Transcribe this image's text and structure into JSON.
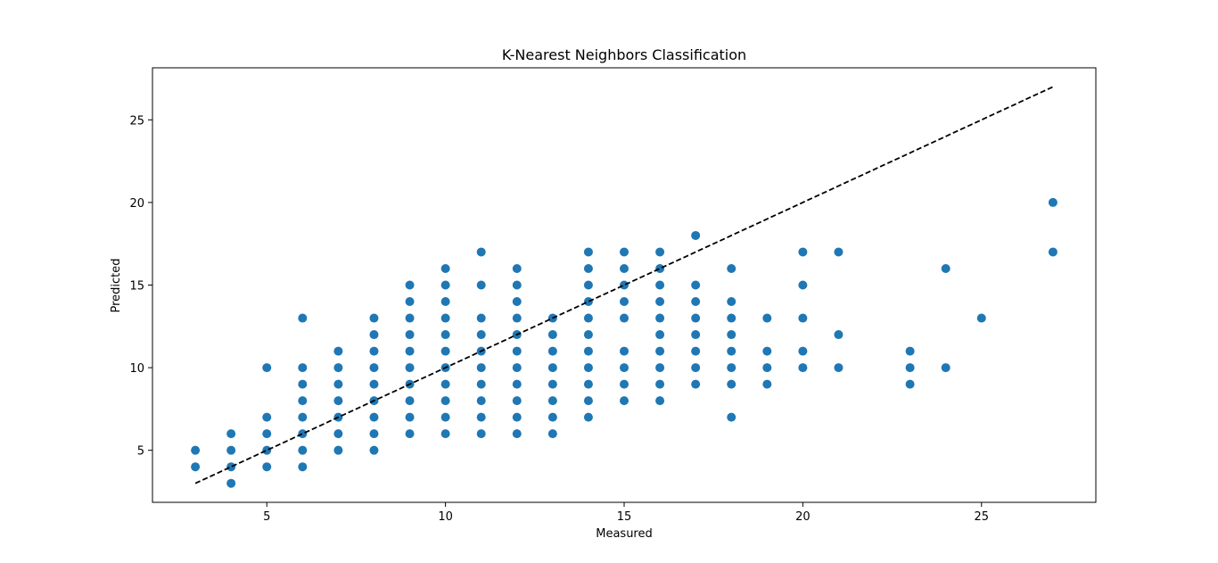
{
  "chart_data": {
    "type": "scatter",
    "title": "K-Nearest Neighbors Classification",
    "xlabel": "Measured",
    "ylabel": "Predicted",
    "xlim": [
      1.8,
      28.2
    ],
    "ylim": [
      1.85,
      28.15
    ],
    "xticks": [
      5,
      10,
      15,
      20,
      25
    ],
    "yticks": [
      5,
      10,
      15,
      20,
      25
    ],
    "grid": false,
    "legend": "none",
    "colors": {
      "points": "#1f77b4",
      "reference_line": "#000000"
    },
    "reference_line": {
      "style": "dashed",
      "x": [
        3,
        27
      ],
      "y": [
        3,
        27
      ]
    },
    "series": [
      {
        "points": [
          [
            3,
            4
          ],
          [
            3,
            5
          ],
          [
            4,
            3
          ],
          [
            4,
            4
          ],
          [
            4,
            5
          ],
          [
            4,
            6
          ],
          [
            5,
            4
          ],
          [
            5,
            5
          ],
          [
            5,
            6
          ],
          [
            5,
            7
          ],
          [
            5,
            10
          ],
          [
            6,
            4
          ],
          [
            6,
            5
          ],
          [
            6,
            6
          ],
          [
            6,
            7
          ],
          [
            6,
            8
          ],
          [
            6,
            9
          ],
          [
            6,
            10
          ],
          [
            6,
            13
          ],
          [
            7,
            5
          ],
          [
            7,
            6
          ],
          [
            7,
            7
          ],
          [
            7,
            8
          ],
          [
            7,
            9
          ],
          [
            7,
            10
          ],
          [
            7,
            11
          ],
          [
            8,
            5
          ],
          [
            8,
            6
          ],
          [
            8,
            7
          ],
          [
            8,
            8
          ],
          [
            8,
            9
          ],
          [
            8,
            10
          ],
          [
            8,
            11
          ],
          [
            8,
            12
          ],
          [
            8,
            13
          ],
          [
            9,
            6
          ],
          [
            9,
            7
          ],
          [
            9,
            8
          ],
          [
            9,
            9
          ],
          [
            9,
            10
          ],
          [
            9,
            11
          ],
          [
            9,
            12
          ],
          [
            9,
            13
          ],
          [
            9,
            14
          ],
          [
            9,
            15
          ],
          [
            10,
            6
          ],
          [
            10,
            7
          ],
          [
            10,
            8
          ],
          [
            10,
            9
          ],
          [
            10,
            10
          ],
          [
            10,
            11
          ],
          [
            10,
            12
          ],
          [
            10,
            13
          ],
          [
            10,
            14
          ],
          [
            10,
            15
          ],
          [
            10,
            16
          ],
          [
            11,
            6
          ],
          [
            11,
            7
          ],
          [
            11,
            8
          ],
          [
            11,
            9
          ],
          [
            11,
            10
          ],
          [
            11,
            11
          ],
          [
            11,
            12
          ],
          [
            11,
            13
          ],
          [
            11,
            15
          ],
          [
            11,
            17
          ],
          [
            12,
            6
          ],
          [
            12,
            7
          ],
          [
            12,
            8
          ],
          [
            12,
            9
          ],
          [
            12,
            10
          ],
          [
            12,
            11
          ],
          [
            12,
            12
          ],
          [
            12,
            13
          ],
          [
            12,
            14
          ],
          [
            12,
            15
          ],
          [
            12,
            16
          ],
          [
            13,
            6
          ],
          [
            13,
            7
          ],
          [
            13,
            8
          ],
          [
            13,
            9
          ],
          [
            13,
            10
          ],
          [
            13,
            11
          ],
          [
            13,
            12
          ],
          [
            13,
            13
          ],
          [
            14,
            7
          ],
          [
            14,
            8
          ],
          [
            14,
            9
          ],
          [
            14,
            10
          ],
          [
            14,
            11
          ],
          [
            14,
            12
          ],
          [
            14,
            13
          ],
          [
            14,
            14
          ],
          [
            14,
            15
          ],
          [
            14,
            16
          ],
          [
            14,
            17
          ],
          [
            15,
            8
          ],
          [
            15,
            9
          ],
          [
            15,
            10
          ],
          [
            15,
            11
          ],
          [
            15,
            13
          ],
          [
            15,
            14
          ],
          [
            15,
            15
          ],
          [
            15,
            16
          ],
          [
            15,
            17
          ],
          [
            16,
            8
          ],
          [
            16,
            9
          ],
          [
            16,
            10
          ],
          [
            16,
            11
          ],
          [
            16,
            12
          ],
          [
            16,
            13
          ],
          [
            16,
            14
          ],
          [
            16,
            15
          ],
          [
            16,
            16
          ],
          [
            16,
            17
          ],
          [
            17,
            9
          ],
          [
            17,
            10
          ],
          [
            17,
            11
          ],
          [
            17,
            12
          ],
          [
            17,
            13
          ],
          [
            17,
            14
          ],
          [
            17,
            15
          ],
          [
            17,
            18
          ],
          [
            18,
            7
          ],
          [
            18,
            9
          ],
          [
            18,
            10
          ],
          [
            18,
            11
          ],
          [
            18,
            12
          ],
          [
            18,
            13
          ],
          [
            18,
            14
          ],
          [
            18,
            16
          ],
          [
            19,
            9
          ],
          [
            19,
            10
          ],
          [
            19,
            11
          ],
          [
            19,
            13
          ],
          [
            20,
            10
          ],
          [
            20,
            11
          ],
          [
            20,
            13
          ],
          [
            20,
            15
          ],
          [
            20,
            17
          ],
          [
            21,
            10
          ],
          [
            21,
            12
          ],
          [
            21,
            17
          ],
          [
            23,
            9
          ],
          [
            23,
            10
          ],
          [
            23,
            11
          ],
          [
            24,
            10
          ],
          [
            24,
            16
          ],
          [
            25,
            13
          ],
          [
            27,
            17
          ],
          [
            27,
            20
          ]
        ]
      }
    ]
  }
}
